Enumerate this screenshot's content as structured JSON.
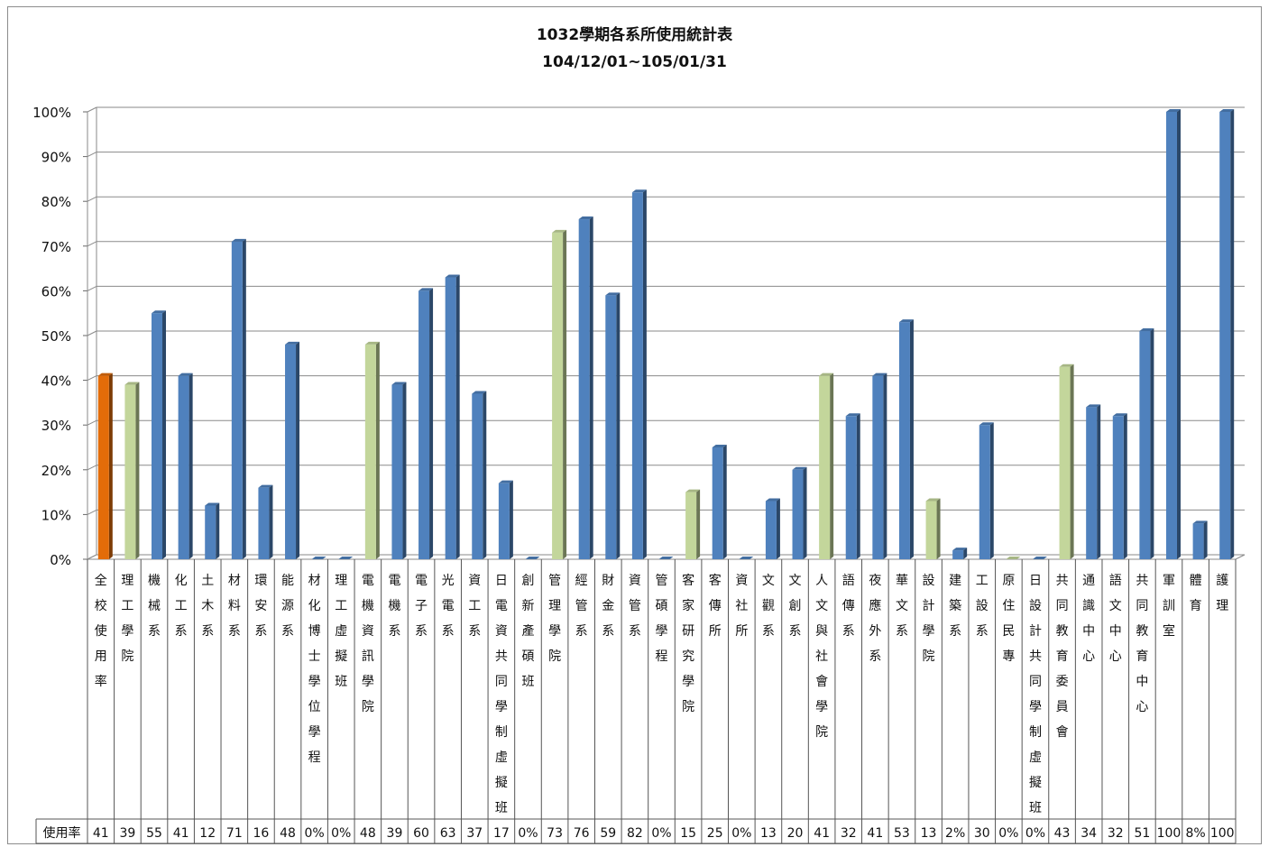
{
  "chart_data": {
    "type": "bar",
    "title": "1032學期各系所使用統計表",
    "subtitle": "104/12/01~105/01/31",
    "ylim": [
      0,
      100
    ],
    "y_ticks": [
      "0%",
      "10%",
      "20%",
      "30%",
      "40%",
      "50%",
      "60%",
      "70%",
      "80%",
      "90%",
      "100%"
    ],
    "table_row_label": "使用率",
    "grid": true,
    "colors": {
      "school": "#E36C09",
      "college": "#C3D69B",
      "department": "#4F81BD"
    },
    "categories": [
      {
        "label": "全校使用率",
        "value": 41,
        "display": "41",
        "kind": "school"
      },
      {
        "label": "理工學院",
        "value": 39,
        "display": "39",
        "kind": "college"
      },
      {
        "label": "機械系",
        "value": 55,
        "display": "55",
        "kind": "department"
      },
      {
        "label": "化工系",
        "value": 41,
        "display": "41",
        "kind": "department"
      },
      {
        "label": "土木系",
        "value": 12,
        "display": "12",
        "kind": "department"
      },
      {
        "label": "材料系",
        "value": 71,
        "display": "71",
        "kind": "department"
      },
      {
        "label": "環安系",
        "value": 16,
        "display": "16",
        "kind": "department"
      },
      {
        "label": "能源系",
        "value": 48,
        "display": "48",
        "kind": "department"
      },
      {
        "label": "材化博士學位學程",
        "value": 0,
        "display": "0%",
        "kind": "department"
      },
      {
        "label": "理工虛擬班",
        "value": 0,
        "display": "0%",
        "kind": "department"
      },
      {
        "label": "電機資訊學院",
        "value": 48,
        "display": "48",
        "kind": "college"
      },
      {
        "label": "電機系",
        "value": 39,
        "display": "39",
        "kind": "department"
      },
      {
        "label": "電子系",
        "value": 60,
        "display": "60",
        "kind": "department"
      },
      {
        "label": "光電系",
        "value": 63,
        "display": "63",
        "kind": "department"
      },
      {
        "label": "資工系",
        "value": 37,
        "display": "37",
        "kind": "department"
      },
      {
        "label": "日電資共同學制虛擬班",
        "value": 17,
        "display": "17",
        "kind": "department"
      },
      {
        "label": "創新產碩班",
        "value": 0,
        "display": "0%",
        "kind": "department"
      },
      {
        "label": "管理學院",
        "value": 73,
        "display": "73",
        "kind": "college"
      },
      {
        "label": "經管系",
        "value": 76,
        "display": "76",
        "kind": "department"
      },
      {
        "label": "財金系",
        "value": 59,
        "display": "59",
        "kind": "department"
      },
      {
        "label": "資管系",
        "value": 82,
        "display": "82",
        "kind": "department"
      },
      {
        "label": "管碩學程",
        "value": 0,
        "display": "0%",
        "kind": "department"
      },
      {
        "label": "客家研究學院",
        "value": 15,
        "display": "15",
        "kind": "college"
      },
      {
        "label": "客傳所",
        "value": 25,
        "display": "25",
        "kind": "department"
      },
      {
        "label": "資社所",
        "value": 0,
        "display": "0%",
        "kind": "department"
      },
      {
        "label": "文觀系",
        "value": 13,
        "display": "13",
        "kind": "department"
      },
      {
        "label": "文創系",
        "value": 20,
        "display": "20",
        "kind": "department"
      },
      {
        "label": "人文與社會學院",
        "value": 41,
        "display": "41",
        "kind": "college"
      },
      {
        "label": "語傳系",
        "value": 32,
        "display": "32",
        "kind": "department"
      },
      {
        "label": "夜應外系",
        "value": 41,
        "display": "41",
        "kind": "department"
      },
      {
        "label": "華文系",
        "value": 53,
        "display": "53",
        "kind": "department"
      },
      {
        "label": "設計學院",
        "value": 13,
        "display": "13",
        "kind": "college"
      },
      {
        "label": "建築系",
        "value": 2,
        "display": "2%",
        "kind": "department"
      },
      {
        "label": "工設系",
        "value": 30,
        "display": "30",
        "kind": "department"
      },
      {
        "label": "原住民專",
        "value": 0,
        "display": "0%",
        "kind": "college"
      },
      {
        "label": "日設計共同學制虛擬班",
        "value": 0,
        "display": "0%",
        "kind": "department"
      },
      {
        "label": "共同教育委員會",
        "value": 43,
        "display": "43",
        "kind": "college"
      },
      {
        "label": "通識中心",
        "value": 34,
        "display": "34",
        "kind": "department"
      },
      {
        "label": "語文中心",
        "value": 32,
        "display": "32",
        "kind": "department"
      },
      {
        "label": "共同教育中心",
        "value": 51,
        "display": "51",
        "kind": "department"
      },
      {
        "label": "軍訓室",
        "value": 100,
        "display": "100",
        "kind": "department"
      },
      {
        "label": "體育",
        "value": 8,
        "display": "8%",
        "kind": "department"
      },
      {
        "label": "護理",
        "value": 100,
        "display": "100",
        "kind": "department"
      }
    ]
  }
}
